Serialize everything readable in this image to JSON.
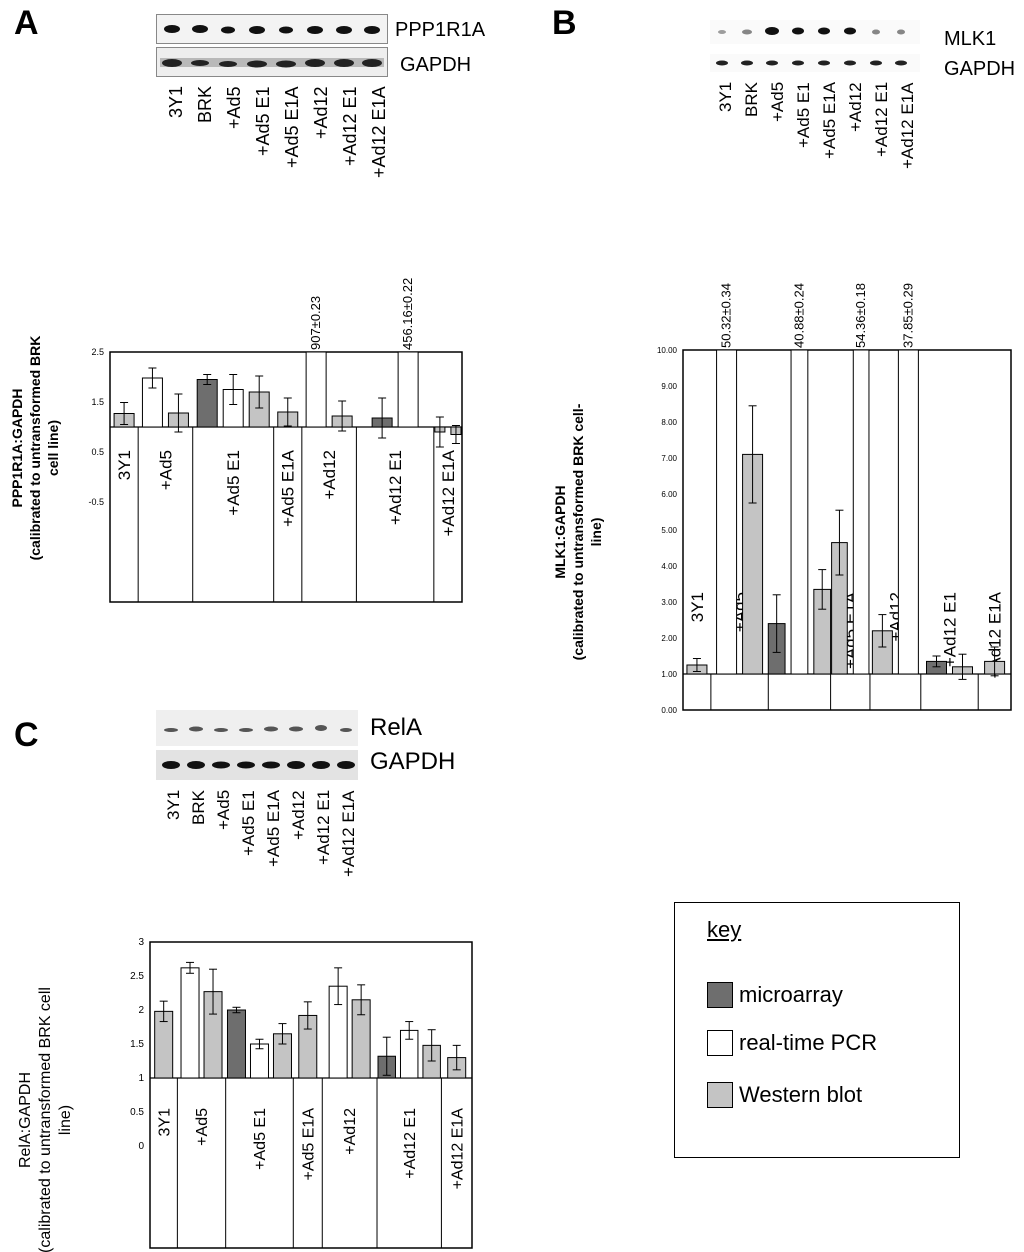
{
  "panels": {
    "A": {
      "letter": "A",
      "blot_top_label": "PPP1R1A",
      "blot_bottom_label": "GAPDH"
    },
    "B": {
      "letter": "B",
      "blot_top_label": "MLK1",
      "blot_bottom_label": "GAPDH"
    },
    "C": {
      "letter": "C",
      "blot_top_label": "RelA",
      "blot_bottom_label": "GAPDH"
    }
  },
  "lanes": [
    "3Y1",
    "BRK",
    "+Ad5",
    "+Ad5 E1",
    "+Ad5 E1A",
    "+Ad12",
    "+Ad12 E1",
    "+Ad12 E1A"
  ],
  "key": {
    "title": "key",
    "items": [
      {
        "label": "microarray",
        "color": "#6e6e6e"
      },
      {
        "label": "real-time PCR",
        "color": "#ffffff"
      },
      {
        "label": "Western blot",
        "color": "#c4c4c4"
      }
    ]
  },
  "chart_data": [
    {
      "type": "bar",
      "panel": "A",
      "ylabel_line1": "PPP1R1A:GAPDH",
      "ylabel_line2": "(calibrated to untransformed BRK",
      "ylabel_line3": "cell line)",
      "ylim": [
        -2.5,
        2.5
      ],
      "baseline": 1,
      "yticks": [
        2.5,
        1.5,
        0.5,
        -0.5
      ],
      "ytick_labels": [
        "2.5",
        "1.5",
        "0.5",
        "-0.5"
      ],
      "categories": [
        "3Y1",
        "+Ad5",
        "+Ad5 E1",
        "+Ad5 E1A",
        "+Ad12",
        "+Ad12 E1",
        "+Ad12 E1A"
      ],
      "bars": [
        {
          "group": 0,
          "method": "western",
          "value": 1.27,
          "error": 0.22
        },
        {
          "group": 1,
          "method": "pcr",
          "value": 1.98,
          "error": 0.2
        },
        {
          "group": 1,
          "method": "western",
          "value": 1.28,
          "error": 0.38
        },
        {
          "group": 2,
          "method": "microarray",
          "value": 1.95,
          "error": 0.1
        },
        {
          "group": 2,
          "method": "pcr",
          "value": 1.75,
          "error": 0.3
        },
        {
          "group": 2,
          "method": "western",
          "value": 1.7,
          "error": 0.32
        },
        {
          "group": 3,
          "method": "western",
          "value": 1.3,
          "error": 0.28
        },
        {
          "group": 4,
          "method": "pcr",
          "value": 2.5,
          "error": 0,
          "clipped": true,
          "annotation": "907±0.23"
        },
        {
          "group": 4,
          "method": "western",
          "value": 1.22,
          "error": 0.3
        },
        {
          "group": 5,
          "method": "microarray",
          "value": 1.18,
          "error": 0.4
        },
        {
          "group": 5,
          "method": "pcr",
          "value": 2.5,
          "error": 0,
          "clipped": true,
          "annotation": "456.16±0.22"
        },
        {
          "group": 6,
          "method": "western",
          "value": 0.9,
          "error": 0.3
        },
        {
          "group": 6,
          "method": "western",
          "value": 0.85,
          "error": 0.18
        }
      ]
    },
    {
      "type": "bar",
      "panel": "B",
      "ylabel_line1": "MLK1:GAPDH",
      "ylabel_line2": "(calibrated to untransformed BRK cell-",
      "ylabel_line3": "line)",
      "ylim": [
        0,
        10
      ],
      "baseline": 1,
      "yticks": [
        10,
        9,
        8,
        7,
        6,
        5,
        4,
        3,
        2,
        1,
        0
      ],
      "ytick_labels": [
        "10.00",
        "9.00",
        "8.00",
        "7.00",
        "6.00",
        "5.00",
        "4.00",
        "3.00",
        "2.00",
        "1.00",
        "0.00"
      ],
      "categories": [
        "3Y1",
        "+Ad5",
        "+Ad5 E1",
        "+Ad5 E1A",
        "+Ad12",
        "+Ad12 E1",
        "+Ad12 E1A"
      ],
      "bars": [
        {
          "group": 0,
          "method": "western",
          "value": 1.25,
          "error": 0.18
        },
        {
          "group": 1,
          "method": "pcr",
          "value": 10,
          "error": 0,
          "clipped": true,
          "annotation": "50.32±0.34"
        },
        {
          "group": 1,
          "method": "western",
          "value": 7.1,
          "error": 1.35
        },
        {
          "group": 2,
          "method": "microarray",
          "value": 2.4,
          "error": 0.8
        },
        {
          "group": 2,
          "method": "pcr",
          "value": 10,
          "error": 0,
          "clipped": true,
          "annotation": "40.88±0.24"
        },
        {
          "group": 2,
          "method": "western",
          "value": 3.35,
          "error": 0.55
        },
        {
          "group": 3,
          "method": "western",
          "value": 4.65,
          "error": 0.9
        },
        {
          "group": 3,
          "method": "pcr",
          "value": 10,
          "error": 0,
          "clipped": true,
          "annotation": "54.36±0.18"
        },
        {
          "group": 4,
          "method": "western",
          "value": 2.2,
          "error": 0.45
        },
        {
          "group": 4,
          "method": "pcr",
          "value": 10,
          "error": 0,
          "clipped": true,
          "annotation": "37.85±0.29"
        },
        {
          "group": 5,
          "method": "microarray",
          "value": 1.35,
          "error": 0.15
        },
        {
          "group": 5,
          "method": "western",
          "value": 1.2,
          "error": 0.35
        },
        {
          "group": 6,
          "method": "western",
          "value": 1.35,
          "error": 0.4
        }
      ]
    },
    {
      "type": "bar",
      "panel": "C",
      "ylabel_line1": "RelA:GAPDH",
      "ylabel_line2": "(calibrated to untransformed BRK cell",
      "ylabel_line3": "line)",
      "ylim": [
        -1.5,
        3
      ],
      "baseline": 1,
      "yticks": [
        3,
        2.5,
        2,
        1.5,
        1,
        0.5,
        0
      ],
      "ytick_labels": [
        "3",
        "2.5",
        "2",
        "1.5",
        "1",
        "0.5",
        "0"
      ],
      "categories": [
        "3Y1",
        "+Ad5",
        "+Ad5 E1",
        "+Ad5 E1A",
        "+Ad12",
        "+Ad12 E1",
        "+Ad12 E1A"
      ],
      "bars": [
        {
          "group": 0,
          "method": "western",
          "value": 1.98,
          "error": 0.15
        },
        {
          "group": 1,
          "method": "pcr",
          "value": 2.62,
          "error": 0.08
        },
        {
          "group": 1,
          "method": "western",
          "value": 2.27,
          "error": 0.33
        },
        {
          "group": 2,
          "method": "microarray",
          "value": 2.0,
          "error": 0.04
        },
        {
          "group": 2,
          "method": "pcr",
          "value": 1.5,
          "error": 0.07
        },
        {
          "group": 2,
          "method": "western",
          "value": 1.65,
          "error": 0.15
        },
        {
          "group": 3,
          "method": "western",
          "value": 1.92,
          "error": 0.2
        },
        {
          "group": 4,
          "method": "pcr",
          "value": 2.35,
          "error": 0.27
        },
        {
          "group": 4,
          "method": "western",
          "value": 2.15,
          "error": 0.22
        },
        {
          "group": 5,
          "method": "microarray",
          "value": 1.32,
          "error": 0.28
        },
        {
          "group": 5,
          "method": "pcr",
          "value": 1.7,
          "error": 0.13
        },
        {
          "group": 5,
          "method": "western",
          "value": 1.48,
          "error": 0.23
        },
        {
          "group": 6,
          "method": "western",
          "value": 1.3,
          "error": 0.18
        }
      ]
    }
  ]
}
